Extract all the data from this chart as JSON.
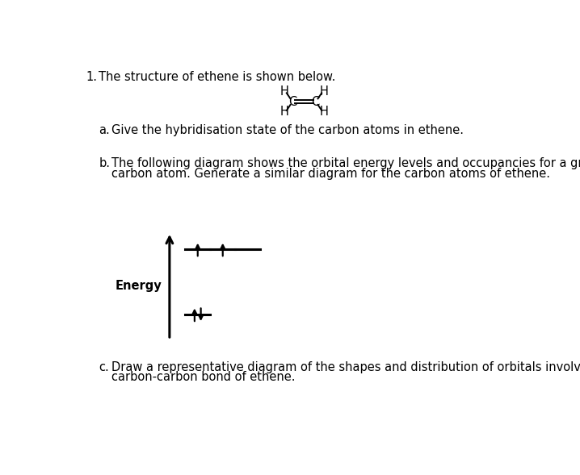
{
  "title_num": "1.",
  "title_text": "The structure of ethene is shown below.",
  "qa_label": "a.",
  "qa_text": "Give the hybridisation state of the carbon atoms in ethene.",
  "qb_label": "b.",
  "qb_line1": "The following diagram shows the orbital energy levels and occupancies for a ground state",
  "qb_line2": "carbon atom. Generate a similar diagram for the carbon atoms of ethene.",
  "qc_label": "c.",
  "qc_line1": "Draw a representative diagram of the shapes and distribution of orbitals involved in the",
  "qc_line2": "carbon-carbon bond of ethene.",
  "energy_label": "Energy",
  "background_color": "#ffffff",
  "text_color": "#000000",
  "font_size_main": 10.5
}
